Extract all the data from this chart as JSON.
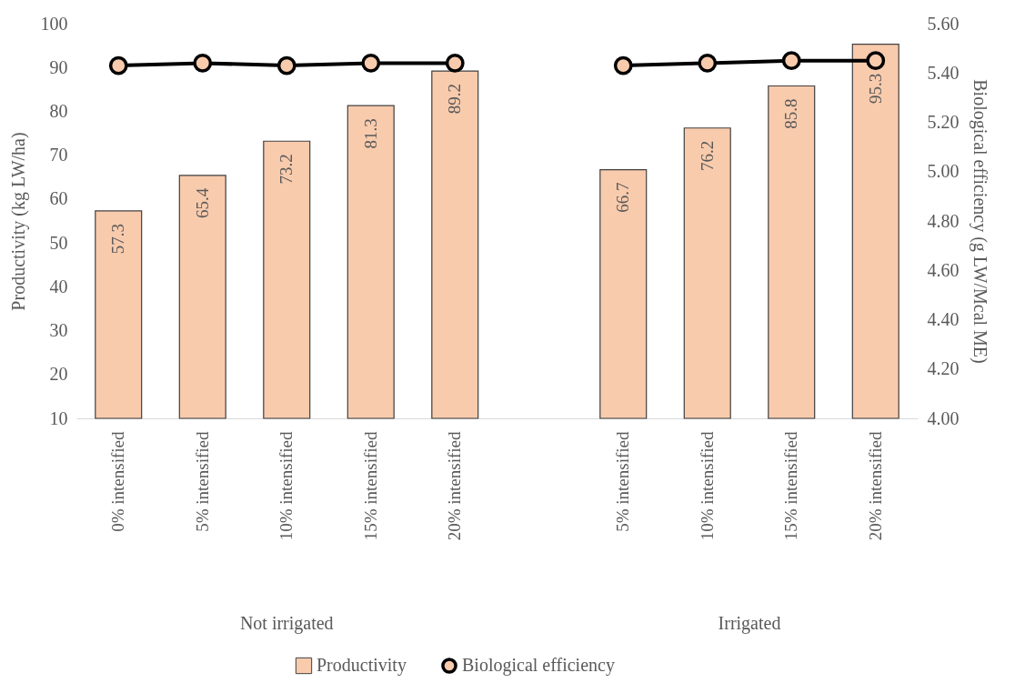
{
  "chart_data": {
    "type": "bar",
    "categories": [
      "0% intensified",
      "5% intensified",
      "10% intensified",
      "15% intensified",
      "20% intensified",
      null,
      "5% intensified",
      "10% intensified",
      "15% intensified",
      "20% intensified"
    ],
    "series": [
      {
        "name": "Productivity",
        "color": "#f8cbad",
        "values": [
          57.3,
          65.4,
          73.2,
          81.3,
          89.2,
          null,
          66.7,
          76.2,
          85.8,
          95.3
        ],
        "value_labels": [
          "57.3",
          "65.4",
          "73.2",
          "81.3",
          "89.2",
          null,
          "66.7",
          "76.2",
          "85.8",
          "95.3"
        ]
      },
      {
        "name": "Biological efficiency",
        "type": "line",
        "axis": "y2",
        "color": "#000000",
        "values": [
          5.43,
          5.44,
          5.43,
          5.44,
          5.44,
          null,
          5.43,
          5.44,
          5.45,
          5.45
        ]
      }
    ],
    "ylabel": "Productivity (kg LW/ha)",
    "y2label": "Biological efficiency (g LW/Mcal ME)",
    "ylim": [
      10,
      100
    ],
    "yticks": [
      10,
      20,
      30,
      40,
      50,
      60,
      70,
      80,
      90,
      100
    ],
    "y2lim": [
      4,
      5.6
    ],
    "y2ticks": [
      {
        "value": 4,
        "label": "4.00"
      },
      {
        "value": 4.2,
        "label": "4.20"
      },
      {
        "value": 4.4,
        "label": "4.40"
      },
      {
        "value": 4.6,
        "label": "4.60"
      },
      {
        "value": 4.8,
        "label": "4.80"
      },
      {
        "value": 5,
        "label": "5.00"
      },
      {
        "value": 5.2,
        "label": "5.20"
      },
      {
        "value": 5.4,
        "label": "5.40"
      },
      {
        "value": 5.6,
        "label": "5.60"
      }
    ],
    "annotations": [
      "Not irrigated",
      "Irrigated"
    ],
    "marker": "circle",
    "legend": "bottom",
    "grid": false
  }
}
